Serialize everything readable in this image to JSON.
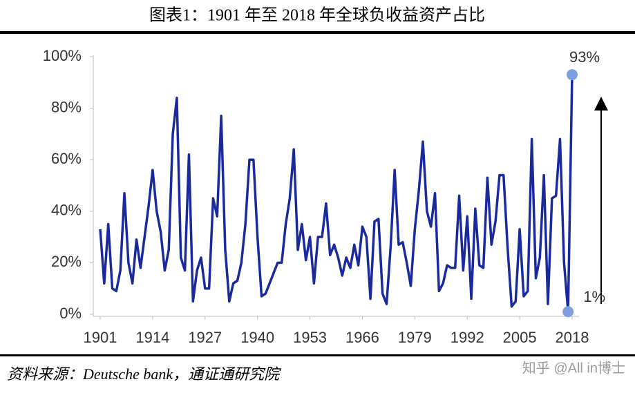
{
  "chart_data": {
    "type": "line",
    "title": "图表1：1901 年至 2018 年全球负收益资产占比",
    "source": "资料来源：Deutsche bank，通证通研究院",
    "watermark": "知乎 @All in博士",
    "x": [
      1901,
      1902,
      1903,
      1904,
      1905,
      1906,
      1907,
      1908,
      1909,
      1910,
      1911,
      1912,
      1913,
      1914,
      1915,
      1916,
      1917,
      1918,
      1919,
      1920,
      1921,
      1922,
      1923,
      1924,
      1925,
      1926,
      1927,
      1928,
      1929,
      1930,
      1931,
      1932,
      1933,
      1934,
      1935,
      1936,
      1937,
      1938,
      1939,
      1940,
      1941,
      1942,
      1943,
      1944,
      1945,
      1946,
      1947,
      1948,
      1949,
      1950,
      1951,
      1952,
      1953,
      1954,
      1955,
      1956,
      1957,
      1958,
      1959,
      1960,
      1961,
      1962,
      1963,
      1964,
      1965,
      1966,
      1967,
      1968,
      1969,
      1970,
      1971,
      1972,
      1973,
      1974,
      1975,
      1976,
      1977,
      1978,
      1979,
      1980,
      1981,
      1982,
      1983,
      1984,
      1985,
      1986,
      1987,
      1988,
      1989,
      1990,
      1991,
      1992,
      1993,
      1994,
      1995,
      1996,
      1997,
      1998,
      1999,
      2000,
      2001,
      2002,
      2003,
      2004,
      2005,
      2006,
      2007,
      2008,
      2009,
      2010,
      2011,
      2012,
      2013,
      2014,
      2015,
      2016,
      2017,
      2018
    ],
    "series": [
      {
        "color": "#1a2a9c",
        "values": [
          33,
          12,
          35,
          10,
          9,
          17,
          47,
          20,
          12,
          29,
          18,
          30,
          42,
          56,
          40,
          32,
          17,
          25,
          70,
          84,
          22,
          17,
          62,
          5,
          17,
          22,
          10,
          10,
          45,
          38,
          77,
          25,
          5,
          12,
          13,
          20,
          35,
          60,
          60,
          30,
          7,
          8,
          12,
          16,
          20,
          20,
          35,
          45,
          64,
          25,
          35,
          21,
          30,
          12,
          30,
          30,
          43,
          23,
          27,
          22,
          15,
          22,
          18,
          27,
          19,
          34,
          30,
          6,
          36,
          37,
          8,
          4,
          26,
          56,
          27,
          28,
          20,
          11,
          33,
          48,
          67,
          40,
          34,
          47,
          9,
          12,
          19,
          18,
          18,
          46,
          17,
          38,
          6,
          41,
          19,
          18,
          53,
          27,
          36,
          54,
          54,
          26,
          3,
          5,
          33,
          7,
          9,
          68,
          14,
          22,
          54,
          4,
          45,
          46,
          68,
          20,
          1,
          93
        ]
      }
    ],
    "annotations": [
      {
        "x": 2018,
        "y": 93,
        "label": "93%",
        "color": "#7fa0e0"
      },
      {
        "x": 2017,
        "y": 1,
        "label": "1%",
        "color": "#7fa0e0"
      }
    ],
    "xlim": [
      1901,
      2018
    ],
    "xticks": [
      1901,
      1914,
      1927,
      1940,
      1953,
      1966,
      1979,
      1992,
      2005,
      2018
    ],
    "ylim": [
      0,
      100
    ],
    "yticks": [
      {
        "value": 0,
        "label": "0%"
      },
      {
        "value": 20,
        "label": "20%"
      },
      {
        "value": 40,
        "label": "40%"
      },
      {
        "value": 60,
        "label": "60%"
      },
      {
        "value": 80,
        "label": "80%"
      },
      {
        "value": 100,
        "label": "100%"
      }
    ]
  }
}
